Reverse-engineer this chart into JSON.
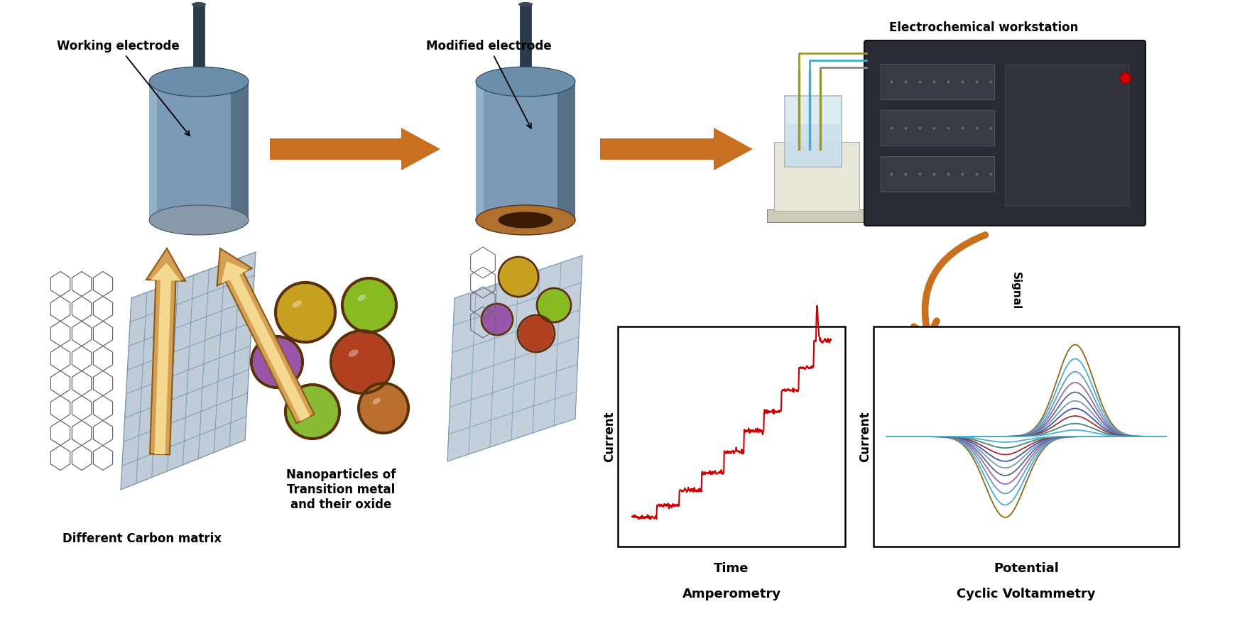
{
  "bg_color": "#ffffff",
  "arrow_color": "#C87020",
  "working_electrode_label": "Working electrode",
  "modified_electrode_label": "Modified electrode",
  "echem_workstation_label": "Electrochemical workstation",
  "carbon_matrix_label": "Different Carbon matrix",
  "nanoparticles_label": "Nanoparticles of\nTransition metal\nand their oxide",
  "amperometry_xlabel": "Time",
  "amperometry_ylabel": "Current",
  "amperometry_title": "Amperometry",
  "cv_xlabel": "Potential",
  "cv_ylabel": "Current",
  "cv_title": "Cyclic Voltammetry",
  "signal_label": "Signal",
  "amp_line_color": "#CC0000",
  "cv_line_colors": [
    "#8B6914",
    "#4AAFCF",
    "#6699BB",
    "#9966BB",
    "#556B8B",
    "#7799BB",
    "#4455AA",
    "#993333",
    "#448877",
    "#4AAFCF"
  ],
  "electrode_body": "#7799BB",
  "electrode_dark": "#334466",
  "electrode_top": "#6688AA"
}
